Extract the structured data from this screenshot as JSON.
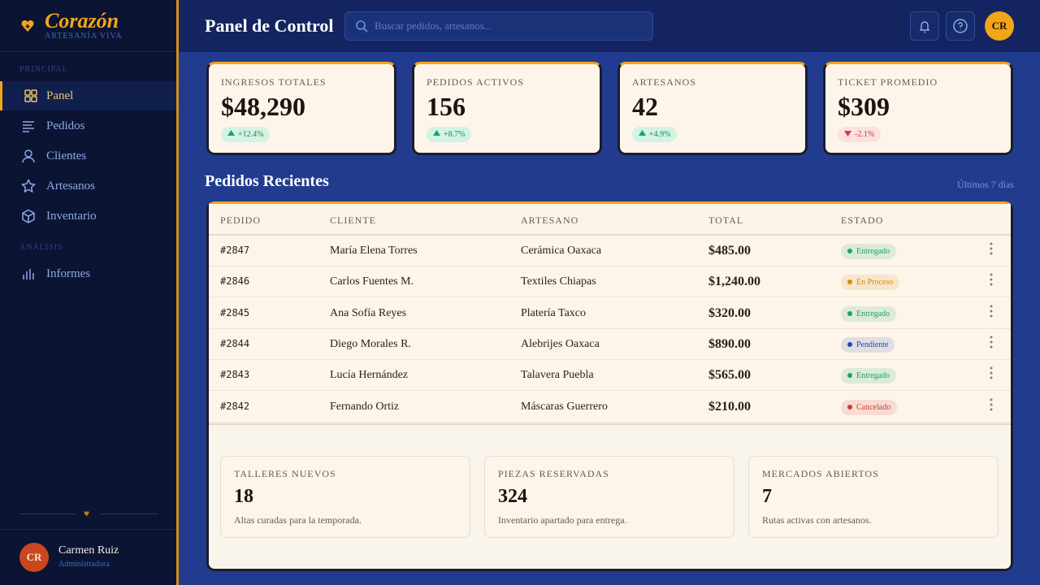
{
  "brand": {
    "name": "Corazón",
    "tagline": "ARTESANÍA VIVA"
  },
  "sidebar": {
    "sections": [
      {
        "title": "PRINCIPAL",
        "items": [
          "Panel",
          "Pedidos",
          "Clientes",
          "Artesanos",
          "Inventario"
        ]
      },
      {
        "title": "ANÁLISIS",
        "items": [
          "Informes"
        ]
      }
    ],
    "user": {
      "initials": "CR",
      "name": "Carmen Ruiz",
      "role": "Administradora"
    }
  },
  "header": {
    "title": "Panel de Control",
    "search_placeholder": "Buscar pedidos, artesanos...",
    "avatar": "CR"
  },
  "stats": [
    {
      "label": "INGRESOS TOTALES",
      "value": "$48,290",
      "change": "+12.4%"
    },
    {
      "label": "PEDIDOS ACTIVOS",
      "value": "156",
      "change": "+8.7%"
    },
    {
      "label": "ARTESANOS",
      "value": "42",
      "change": "+4.9%"
    },
    {
      "label": "TICKET PROMEDIO",
      "value": "$309",
      "change": "-2.1%"
    }
  ],
  "orders": {
    "title": "Pedidos Recientes",
    "period": "Últimos 7 días",
    "columns": [
      "PEDIDO",
      "CLIENTE",
      "ARTESANO",
      "TOTAL",
      "ESTADO"
    ],
    "rows": [
      {
        "id": "#2847",
        "client": "María Elena Torres",
        "artisan": "Cerámica Oaxaca",
        "total": "$485.00",
        "status": "Entregado",
        "status_color": "#16a36a"
      },
      {
        "id": "#2846",
        "client": "Carlos Fuentes M.",
        "artisan": "Textiles Chiapas",
        "total": "$1,240.00",
        "status": "En Proceso",
        "status_color": "#d98a06"
      },
      {
        "id": "#2845",
        "client": "Ana Sofía Reyes",
        "artisan": "Platería Taxco",
        "total": "$320.00",
        "status": "Entregado",
        "status_color": "#16a36a"
      },
      {
        "id": "#2844",
        "client": "Diego Morales R.",
        "artisan": "Alebrijes Oaxaca",
        "total": "$890.00",
        "status": "Pendiente",
        "status_color": "#2448b8"
      },
      {
        "id": "#2843",
        "client": "Lucía Hernández",
        "artisan": "Talavera Puebla",
        "total": "$565.00",
        "status": "Entregado",
        "status_color": "#16a36a"
      },
      {
        "id": "#2842",
        "client": "Fernando Ortiz",
        "artisan": "Máscaras Guerrero",
        "total": "$210.00",
        "status": "Cancelado",
        "status_color": "#d2393b"
      }
    ]
  },
  "highlights": [
    {
      "label": "TALLERES NUEVOS",
      "value": "18",
      "note": "Altas curadas para la temporada."
    },
    {
      "label": "PIEZAS RESERVADAS",
      "value": "324",
      "note": "Inventario apartado para entrega."
    },
    {
      "label": "MERCADOS ABIERTOS",
      "value": "7",
      "note": "Rutas activas con artesanos."
    }
  ]
}
